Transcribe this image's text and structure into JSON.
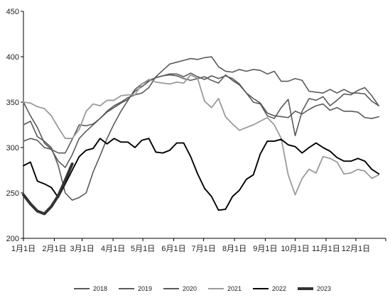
{
  "chart_data": {
    "type": "line",
    "title": "",
    "xlabel": "",
    "ylabel": "",
    "ylim": [
      200,
      450
    ],
    "yticks": [
      200,
      250,
      300,
      350,
      400,
      450
    ],
    "xlim": [
      0,
      52
    ],
    "x_ticks": [
      {
        "label": "1月1日",
        "x": 0
      },
      {
        "label": "2月1日",
        "x": 4.43
      },
      {
        "label": "3月1日",
        "x": 8.43
      },
      {
        "label": "4月1日",
        "x": 12.86
      },
      {
        "label": "5月1日",
        "x": 17.14
      },
      {
        "label": "6月1日",
        "x": 21.57
      },
      {
        "label": "7月1日",
        "x": 25.86
      },
      {
        "label": "8月1日",
        "x": 30.29
      },
      {
        "label": "9月1日",
        "x": 34.71
      },
      {
        "label": "10月1日",
        "x": 39
      },
      {
        "label": "11月1日",
        "x": 43.43
      },
      {
        "label": "12月1日",
        "x": 47.71
      }
    ],
    "grid": false,
    "legend_position": "bottom",
    "series": [
      {
        "name": "2018",
        "color": "#5a5a5a",
        "width": 1.6,
        "values": [
          350,
          335,
          322,
          305,
          298,
          285,
          278,
          292,
          310,
          318,
          325,
          332,
          340,
          346,
          350,
          355,
          358,
          360,
          366,
          378,
          385,
          392,
          394,
          396,
          398,
          397,
          399,
          400,
          389,
          384,
          383,
          386,
          384,
          386,
          385,
          381,
          384,
          373,
          373,
          376,
          374,
          362,
          361,
          360,
          364,
          360,
          364,
          360,
          360,
          359,
          351,
          346
        ]
      },
      {
        "name": "2019",
        "color": "#5a5a5a",
        "width": 1.6,
        "values": [
          307,
          310,
          308,
          300,
          298,
          294,
          294,
          309,
          325,
          324,
          326,
          332,
          339,
          344,
          349,
          353,
          362,
          367,
          373,
          377,
          379,
          381,
          381,
          378,
          382,
          378,
          375,
          379,
          376,
          379,
          376,
          370,
          360,
          350,
          348,
          335,
          332,
          344,
          353,
          313,
          340,
          354,
          352,
          356,
          346,
          352,
          359,
          358,
          363,
          366,
          357,
          346
        ]
      },
      {
        "name": "2020",
        "color": "#5a5a5a",
        "width": 1.6,
        "values": [
          325,
          329,
          312,
          307,
          300,
          280,
          250,
          242,
          245,
          250,
          273,
          291,
          310,
          326,
          340,
          352,
          364,
          370,
          374,
          377,
          379,
          380,
          379,
          376,
          374,
          376,
          378,
          374,
          371,
          380,
          374,
          369,
          360,
          354,
          349,
          338,
          335,
          334,
          333,
          340,
          337,
          342,
          346,
          348,
          341,
          344,
          340,
          340,
          339,
          333,
          332,
          334
        ]
      },
      {
        "name": "2021",
        "color": "#9a9a9a",
        "width": 1.8,
        "values": [
          350,
          349,
          345,
          343,
          335,
          322,
          310,
          310,
          320,
          340,
          348,
          346,
          352,
          352,
          357,
          358,
          358,
          370,
          375,
          372,
          371,
          370,
          372,
          371,
          380,
          376,
          351,
          344,
          354,
          334,
          326,
          319,
          322,
          325,
          329,
          333,
          325,
          310,
          270,
          248,
          266,
          276,
          272,
          290,
          288,
          284,
          271,
          272,
          276,
          274,
          266,
          270
        ]
      },
      {
        "name": "2022",
        "color": "#000000",
        "width": 1.9,
        "values": [
          280,
          284,
          263,
          260,
          256,
          245,
          260,
          275,
          290,
          297,
          299,
          310,
          304,
          310,
          306,
          306,
          300,
          308,
          310,
          295,
          294,
          297,
          305,
          305,
          290,
          271,
          255,
          246,
          231,
          232,
          246,
          253,
          265,
          270,
          293,
          307,
          307,
          309,
          303,
          301,
          294,
          300,
          305,
          300,
          296,
          289,
          285,
          285,
          288,
          285,
          276,
          271
        ]
      },
      {
        "name": "2023",
        "color": "#333333",
        "width": 4,
        "values": [
          248,
          238,
          230,
          227,
          235,
          247,
          264,
          282
        ]
      }
    ]
  }
}
